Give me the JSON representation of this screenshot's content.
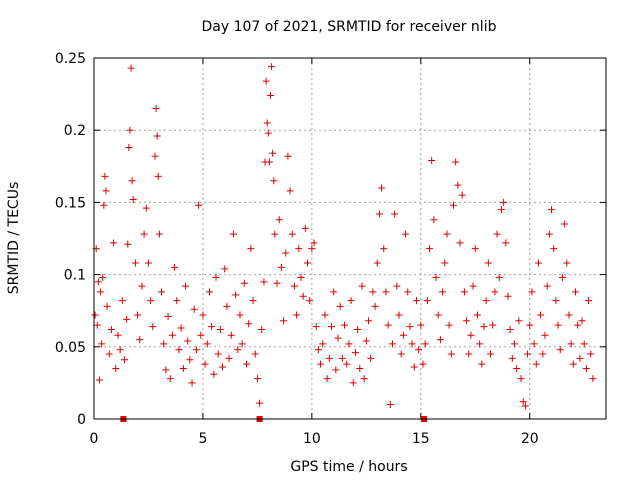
{
  "chart_data": {
    "type": "scatter",
    "title": "Day 107 of 2021, SRMTID for receiver nlib",
    "xlabel": "GPS time / hours",
    "ylabel": "SRMTID / TECUs",
    "xlim": [
      0,
      23.5
    ],
    "ylim": [
      0,
      0.25
    ],
    "x_ticks": [
      0,
      5,
      10,
      15,
      20
    ],
    "x_tick_labels": [
      "0",
      "5",
      "10",
      "15",
      "20"
    ],
    "y_ticks": [
      0,
      0.05,
      0.1,
      0.15,
      0.2,
      0.25
    ],
    "y_tick_labels": [
      "0",
      "0.05",
      "0.1",
      "0.15",
      "0.2",
      "0.25"
    ],
    "grid": true,
    "marker": "+",
    "color": "#e00000",
    "gap_markers_x": [
      1.35,
      7.6,
      15.15
    ],
    "series": [
      {
        "points": [
          [
            0.05,
            0.072
          ],
          [
            0.1,
            0.118
          ],
          [
            0.15,
            0.065
          ],
          [
            0.2,
            0.095
          ],
          [
            0.25,
            0.027
          ],
          [
            0.3,
            0.088
          ],
          [
            0.35,
            0.052
          ],
          [
            0.4,
            0.098
          ],
          [
            0.45,
            0.148
          ],
          [
            0.5,
            0.168
          ],
          [
            0.55,
            0.158
          ],
          [
            0.6,
            0.078
          ],
          [
            0.7,
            0.045
          ],
          [
            0.8,
            0.062
          ],
          [
            0.9,
            0.122
          ],
          [
            1.0,
            0.035
          ],
          [
            1.1,
            0.058
          ],
          [
            1.2,
            0.048
          ],
          [
            1.3,
            0.082
          ],
          [
            1.4,
            0.041
          ],
          [
            1.5,
            0.069
          ],
          [
            1.55,
            0.121
          ],
          [
            1.6,
            0.188
          ],
          [
            1.65,
            0.2
          ],
          [
            1.7,
            0.243
          ],
          [
            1.75,
            0.165
          ],
          [
            1.8,
            0.152
          ],
          [
            1.9,
            0.108
          ],
          [
            2.0,
            0.072
          ],
          [
            2.1,
            0.055
          ],
          [
            2.2,
            0.092
          ],
          [
            2.3,
            0.128
          ],
          [
            2.4,
            0.146
          ],
          [
            2.5,
            0.108
          ],
          [
            2.6,
            0.082
          ],
          [
            2.7,
            0.064
          ],
          [
            2.8,
            0.182
          ],
          [
            2.85,
            0.215
          ],
          [
            2.9,
            0.196
          ],
          [
            2.95,
            0.168
          ],
          [
            3.0,
            0.128
          ],
          [
            3.1,
            0.088
          ],
          [
            3.2,
            0.052
          ],
          [
            3.3,
            0.034
          ],
          [
            3.4,
            0.071
          ],
          [
            3.5,
            0.028
          ],
          [
            3.6,
            0.058
          ],
          [
            3.7,
            0.105
          ],
          [
            3.8,
            0.082
          ],
          [
            3.9,
            0.048
          ],
          [
            4.0,
            0.063
          ],
          [
            4.1,
            0.035
          ],
          [
            4.2,
            0.092
          ],
          [
            4.3,
            0.054
          ],
          [
            4.4,
            0.041
          ],
          [
            4.5,
            0.025
          ],
          [
            4.6,
            0.076
          ],
          [
            4.7,
            0.048
          ],
          [
            4.8,
            0.148
          ],
          [
            4.9,
            0.058
          ],
          [
            5.0,
            0.072
          ],
          [
            5.1,
            0.038
          ],
          [
            5.2,
            0.052
          ],
          [
            5.3,
            0.088
          ],
          [
            5.4,
            0.064
          ],
          [
            5.5,
            0.031
          ],
          [
            5.6,
            0.098
          ],
          [
            5.7,
            0.045
          ],
          [
            5.8,
            0.062
          ],
          [
            5.9,
            0.036
          ],
          [
            6.0,
            0.104
          ],
          [
            6.1,
            0.078
          ],
          [
            6.2,
            0.042
          ],
          [
            6.3,
            0.058
          ],
          [
            6.4,
            0.128
          ],
          [
            6.5,
            0.086
          ],
          [
            6.6,
            0.048
          ],
          [
            6.7,
            0.072
          ],
          [
            6.8,
            0.052
          ],
          [
            6.9,
            0.094
          ],
          [
            7.0,
            0.038
          ],
          [
            7.1,
            0.066
          ],
          [
            7.2,
            0.118
          ],
          [
            7.3,
            0.082
          ],
          [
            7.4,
            0.045
          ],
          [
            7.5,
            0.028
          ],
          [
            7.6,
            0.011
          ],
          [
            7.7,
            0.062
          ],
          [
            7.8,
            0.095
          ],
          [
            7.85,
            0.178
          ],
          [
            7.9,
            0.234
          ],
          [
            7.95,
            0.205
          ],
          [
            8.0,
            0.198
          ],
          [
            8.05,
            0.178
          ],
          [
            8.1,
            0.224
          ],
          [
            8.15,
            0.244
          ],
          [
            8.2,
            0.184
          ],
          [
            8.25,
            0.165
          ],
          [
            8.3,
            0.128
          ],
          [
            8.4,
            0.094
          ],
          [
            8.5,
            0.138
          ],
          [
            8.6,
            0.105
          ],
          [
            8.7,
            0.068
          ],
          [
            8.8,
            0.115
          ],
          [
            8.9,
            0.182
          ],
          [
            9.0,
            0.158
          ],
          [
            9.1,
            0.128
          ],
          [
            9.2,
            0.092
          ],
          [
            9.3,
            0.072
          ],
          [
            9.4,
            0.118
          ],
          [
            9.5,
            0.098
          ],
          [
            9.6,
            0.085
          ],
          [
            9.7,
            0.132
          ],
          [
            9.8,
            0.108
          ],
          [
            9.9,
            0.082
          ],
          [
            10.0,
            0.118
          ],
          [
            10.1,
            0.122
          ],
          [
            10.2,
            0.064
          ],
          [
            10.3,
            0.048
          ],
          [
            10.4,
            0.038
          ],
          [
            10.5,
            0.052
          ],
          [
            10.6,
            0.072
          ],
          [
            10.7,
            0.028
          ],
          [
            10.8,
            0.042
          ],
          [
            10.9,
            0.064
          ],
          [
            11.0,
            0.088
          ],
          [
            11.1,
            0.034
          ],
          [
            11.2,
            0.056
          ],
          [
            11.3,
            0.078
          ],
          [
            11.4,
            0.042
          ],
          [
            11.5,
            0.065
          ],
          [
            11.6,
            0.038
          ],
          [
            11.7,
            0.052
          ],
          [
            11.8,
            0.082
          ],
          [
            11.9,
            0.025
          ],
          [
            12.0,
            0.046
          ],
          [
            12.1,
            0.062
          ],
          [
            12.2,
            0.035
          ],
          [
            12.3,
            0.092
          ],
          [
            12.4,
            0.028
          ],
          [
            12.5,
            0.054
          ],
          [
            12.6,
            0.068
          ],
          [
            12.7,
            0.042
          ],
          [
            12.8,
            0.088
          ],
          [
            12.9,
            0.078
          ],
          [
            13.0,
            0.108
          ],
          [
            13.1,
            0.142
          ],
          [
            13.2,
            0.16
          ],
          [
            13.3,
            0.118
          ],
          [
            13.4,
            0.088
          ],
          [
            13.5,
            0.065
          ],
          [
            13.6,
            0.01
          ],
          [
            13.7,
            0.052
          ],
          [
            13.8,
            0.142
          ],
          [
            13.9,
            0.092
          ],
          [
            14.0,
            0.072
          ],
          [
            14.1,
            0.045
          ],
          [
            14.2,
            0.058
          ],
          [
            14.3,
            0.128
          ],
          [
            14.4,
            0.088
          ],
          [
            14.5,
            0.064
          ],
          [
            14.6,
            0.052
          ],
          [
            14.7,
            0.036
          ],
          [
            14.8,
            0.082
          ],
          [
            14.9,
            0.048
          ],
          [
            15.0,
            0.065
          ],
          [
            15.1,
            0.038
          ],
          [
            15.2,
            0.052
          ],
          [
            15.3,
            0.082
          ],
          [
            15.4,
            0.118
          ],
          [
            15.5,
            0.179
          ],
          [
            15.6,
            0.138
          ],
          [
            15.7,
            0.098
          ],
          [
            15.8,
            0.072
          ],
          [
            15.9,
            0.055
          ],
          [
            16.0,
            0.088
          ],
          [
            16.1,
            0.108
          ],
          [
            16.2,
            0.128
          ],
          [
            16.3,
            0.065
          ],
          [
            16.4,
            0.045
          ],
          [
            16.5,
            0.148
          ],
          [
            16.6,
            0.178
          ],
          [
            16.7,
            0.162
          ],
          [
            16.8,
            0.122
          ],
          [
            16.9,
            0.155
          ],
          [
            17.0,
            0.088
          ],
          [
            17.1,
            0.068
          ],
          [
            17.2,
            0.045
          ],
          [
            17.3,
            0.058
          ],
          [
            17.4,
            0.092
          ],
          [
            17.5,
            0.118
          ],
          [
            17.6,
            0.072
          ],
          [
            17.7,
            0.052
          ],
          [
            17.8,
            0.038
          ],
          [
            17.9,
            0.064
          ],
          [
            18.0,
            0.082
          ],
          [
            18.1,
            0.108
          ],
          [
            18.2,
            0.045
          ],
          [
            18.3,
            0.065
          ],
          [
            18.4,
            0.088
          ],
          [
            18.5,
            0.128
          ],
          [
            18.6,
            0.098
          ],
          [
            18.7,
            0.145
          ],
          [
            18.8,
            0.15
          ],
          [
            18.9,
            0.122
          ],
          [
            19.0,
            0.085
          ],
          [
            19.1,
            0.062
          ],
          [
            19.2,
            0.042
          ],
          [
            19.3,
            0.052
          ],
          [
            19.4,
            0.035
          ],
          [
            19.5,
            0.068
          ],
          [
            19.6,
            0.028
          ],
          [
            19.7,
            0.012
          ],
          [
            19.8,
            0.009
          ],
          [
            19.9,
            0.045
          ],
          [
            20.0,
            0.065
          ],
          [
            20.1,
            0.088
          ],
          [
            20.2,
            0.052
          ],
          [
            20.3,
            0.038
          ],
          [
            20.4,
            0.108
          ],
          [
            20.5,
            0.072
          ],
          [
            20.6,
            0.045
          ],
          [
            20.7,
            0.058
          ],
          [
            20.8,
            0.092
          ],
          [
            20.9,
            0.128
          ],
          [
            21.0,
            0.145
          ],
          [
            21.1,
            0.118
          ],
          [
            21.2,
            0.082
          ],
          [
            21.3,
            0.065
          ],
          [
            21.4,
            0.048
          ],
          [
            21.5,
            0.098
          ],
          [
            21.6,
            0.135
          ],
          [
            21.7,
            0.108
          ],
          [
            21.8,
            0.072
          ],
          [
            21.9,
            0.052
          ],
          [
            22.0,
            0.038
          ],
          [
            22.1,
            0.088
          ],
          [
            22.2,
            0.065
          ],
          [
            22.3,
            0.042
          ],
          [
            22.4,
            0.068
          ],
          [
            22.5,
            0.052
          ],
          [
            22.6,
            0.035
          ],
          [
            22.7,
            0.082
          ],
          [
            22.8,
            0.045
          ],
          [
            22.9,
            0.028
          ]
        ]
      }
    ]
  }
}
